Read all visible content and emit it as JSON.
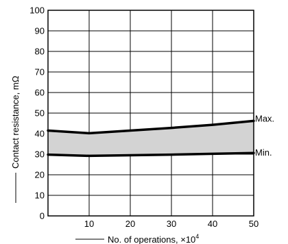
{
  "chart_data": {
    "type": "area",
    "xlabel": "No. of operations, ×10",
    "xlabel_exponent": "4",
    "ylabel": "Contact resistance, mΩ",
    "xlim": [
      0,
      50
    ],
    "ylim": [
      0,
      100
    ],
    "x_ticks": [
      10,
      20,
      30,
      40,
      50
    ],
    "x_tick_labels": [
      "10",
      "20",
      "30",
      "40",
      "50"
    ],
    "y_ticks": [
      0,
      10,
      20,
      30,
      40,
      50,
      60,
      70,
      80,
      90,
      100
    ],
    "y_tick_labels": [
      "0",
      "10",
      "20",
      "30",
      "40",
      "50",
      "60",
      "70",
      "80",
      "90",
      "100"
    ],
    "grid": true,
    "band_color": "#d3d3d3",
    "line_color": "#000000",
    "series": [
      {
        "name": "Max.",
        "x": [
          0,
          10,
          20,
          30,
          40,
          50
        ],
        "values": [
          41.5,
          40.2,
          41.5,
          42.8,
          44.3,
          46.2
        ]
      },
      {
        "name": "Min.",
        "x": [
          0,
          10,
          20,
          30,
          40,
          50
        ],
        "values": [
          29.8,
          29.2,
          29.5,
          29.8,
          30.2,
          30.6
        ]
      }
    ]
  }
}
